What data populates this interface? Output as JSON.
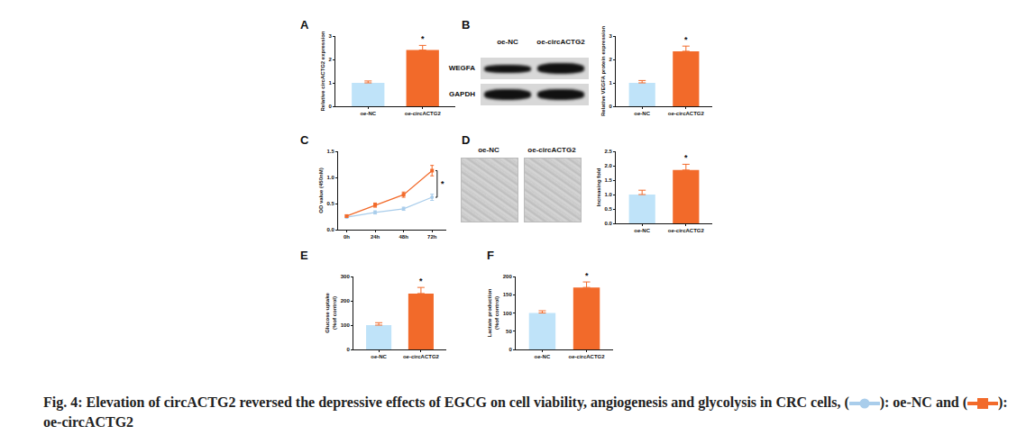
{
  "chart_data": [
    {
      "panel": "A",
      "type": "bar",
      "categories": [
        "oe-NC",
        "oe-circACTG2"
      ],
      "values": [
        1.0,
        2.4
      ],
      "errors": [
        0.08,
        0.2
      ],
      "colors": [
        "#bfe3f9",
        "#f26a2a"
      ],
      "y_label": "Relative circACTG2 expression",
      "ylim": [
        0,
        3
      ],
      "yticks": [
        0,
        1,
        2,
        3
      ],
      "annotation": "*"
    },
    {
      "type": "bar",
      "categories": [
        "oe-NC",
        "oe-circACTG2"
      ],
      "values": [
        1.0,
        2.35
      ],
      "errors": [
        0.1,
        0.22
      ],
      "colors": [
        "#bfe3f9",
        "#f26a2a"
      ],
      "y_label": "Relative VEGFA protein expression",
      "ylim": [
        0,
        3
      ],
      "yticks": [
        0,
        1,
        2,
        3
      ],
      "annotation": "*"
    },
    {
      "panel": "C",
      "type": "line",
      "categories": [
        "0h",
        "24h",
        "48h",
        "72h"
      ],
      "series": [
        {
          "name": "oe-NC",
          "color": "#a9cdeb",
          "marker": "circle",
          "values": [
            0.24,
            0.33,
            0.4,
            0.62
          ],
          "errors": [
            0.02,
            0.03,
            0.03,
            0.06
          ]
        },
        {
          "name": "oe-circACTG2",
          "color": "#f26a2a",
          "marker": "square",
          "values": [
            0.26,
            0.47,
            0.67,
            1.13
          ],
          "errors": [
            0.02,
            0.04,
            0.05,
            0.1
          ]
        }
      ],
      "y_label": "OD value (450nM)",
      "ylim": [
        0,
        1.5
      ],
      "yticks": [
        {
          "value": 0,
          "label": "0.0"
        },
        {
          "value": 0.5,
          "label": "0.5"
        },
        {
          "value": 1,
          "label": "1.0"
        },
        {
          "value": 1.5,
          "label": "1.5"
        }
      ],
      "annotation": "*"
    },
    {
      "type": "bar",
      "categories": [
        "oe-NC",
        "oe-circACTG2"
      ],
      "values": [
        1.0,
        1.85
      ],
      "errors": [
        0.15,
        0.2
      ],
      "colors": [
        "#bfe3f9",
        "#f26a2a"
      ],
      "y_label": "Increasing fold",
      "ylim": [
        0,
        2.5
      ],
      "yticks": [
        {
          "value": 0,
          "label": "0.0"
        },
        {
          "value": 0.5,
          "label": "0.5"
        },
        {
          "value": 1,
          "label": "1.0"
        },
        {
          "value": 1.5,
          "label": "1.5"
        },
        {
          "value": 2,
          "label": "2.0"
        },
        {
          "value": 2.5,
          "label": "2.5"
        }
      ],
      "annotation": "*"
    },
    {
      "panel": "E",
      "type": "bar",
      "categories": [
        "oe-NC",
        "oe-circACTG2"
      ],
      "values": [
        100,
        230
      ],
      "errors": [
        10,
        25
      ],
      "colors": [
        "#bfe3f9",
        "#f26a2a"
      ],
      "y_label": [
        "Glucose uptake",
        "(%of control)"
      ],
      "ylim": [
        0,
        300
      ],
      "yticks": [
        0,
        100,
        200,
        300
      ],
      "annotation": "*"
    },
    {
      "panel": "F",
      "type": "bar",
      "categories": [
        "oe-NC",
        "oe-circACTG2"
      ],
      "values": [
        100,
        170
      ],
      "errors": [
        6,
        15
      ],
      "colors": [
        "#bfe3f9",
        "#f26a2a"
      ],
      "y_label": [
        "Lactate production",
        "(%of control)"
      ],
      "ylim": [
        0,
        200
      ],
      "yticks": [
        0,
        50,
        100,
        150,
        200
      ],
      "annotation": "*"
    }
  ],
  "blot": {
    "panel": "B",
    "columns": [
      "oe-NC",
      "oe-circACTG2"
    ],
    "rows": [
      "WEGFA",
      "GAPDH"
    ]
  },
  "micrographs": {
    "panel": "D",
    "columns": [
      "oe-NC",
      "oe-circACTG2"
    ]
  },
  "caption": {
    "parts": [
      "Fig. 4: Elevation of circACTG2 reversed the depressive effects of EGCG on cell viability, angiogenesis and glycolysis in CRC cells, (",
      "): oe-NC and (",
      "): oe-circACTG2"
    ]
  }
}
